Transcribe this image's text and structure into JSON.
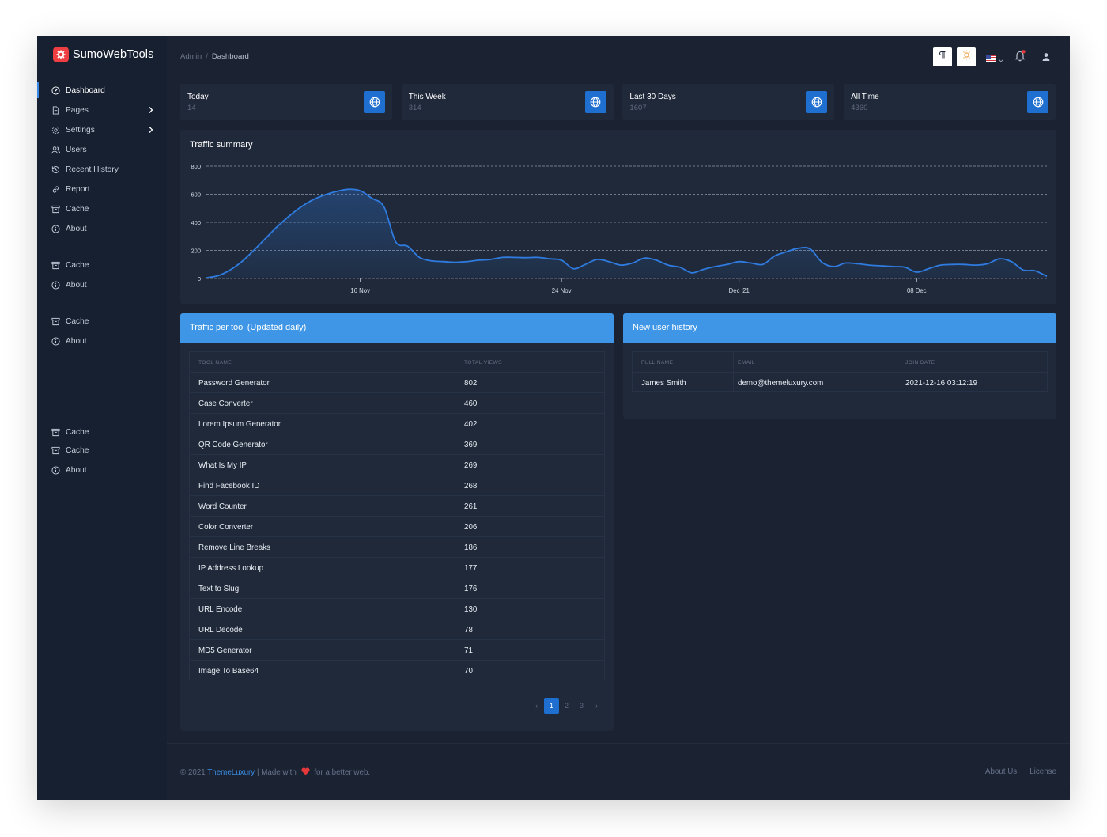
{
  "brand": {
    "name": "SumoWebTools"
  },
  "breadcrumb": {
    "root": "Admin",
    "current": "Dashboard"
  },
  "sidebar": {
    "items": [
      {
        "label": "Dashboard",
        "icon": "dashboard-icon",
        "active": true
      },
      {
        "label": "Pages",
        "icon": "file-icon",
        "has_children": true
      },
      {
        "label": "Settings",
        "icon": "gear-icon",
        "has_children": true
      },
      {
        "label": "Users",
        "icon": "users-icon"
      },
      {
        "label": "Recent History",
        "icon": "history-icon"
      },
      {
        "label": "Report",
        "icon": "link-icon"
      },
      {
        "label": "Cache",
        "icon": "archive-icon"
      },
      {
        "label": "About",
        "icon": "info-icon"
      },
      {
        "label": "Cache",
        "icon": "archive-icon"
      },
      {
        "label": "About",
        "icon": "info-icon"
      },
      {
        "label": "Cache",
        "icon": "archive-icon"
      },
      {
        "label": "About",
        "icon": "info-icon"
      },
      {
        "label": "Cache",
        "icon": "archive-icon"
      },
      {
        "label": "Cache",
        "icon": "archive-icon"
      },
      {
        "label": "About",
        "icon": "info-icon"
      }
    ]
  },
  "header": {
    "icons": [
      "text-direction-icon",
      "sun-icon",
      "us-flag-icon",
      "bell-icon",
      "user-icon"
    ]
  },
  "stats": [
    {
      "title": "Today",
      "value": "14"
    },
    {
      "title": "This Week",
      "value": "314"
    },
    {
      "title": "Last 30 Days",
      "value": "1607"
    },
    {
      "title": "All Time",
      "value": "4360"
    }
  ],
  "chart_data": {
    "type": "area",
    "title": "Traffic summary",
    "xlabel": "",
    "ylabel": "",
    "ylim": [
      0,
      800
    ],
    "yticks": [
      0,
      200,
      400,
      600,
      800
    ],
    "xticks": [
      {
        "label": "16 Nov",
        "index": 13
      },
      {
        "label": "24 Nov",
        "index": 30
      },
      {
        "label": "Dec '21",
        "index": 45
      },
      {
        "label": "08 Dec",
        "index": 60
      }
    ],
    "grid": true,
    "legend": "none",
    "color": "#2f7be0",
    "series": [
      {
        "values": [
          5,
          20,
          60,
          120,
          200,
          285,
          370,
          445,
          510,
          560,
          595,
          620,
          635,
          625,
          570,
          510,
          260,
          230,
          150,
          125,
          120,
          115,
          120,
          130,
          135,
          150,
          150,
          148,
          150,
          140,
          130,
          70,
          100,
          135,
          120,
          95,
          110,
          145,
          130,
          95,
          80,
          40,
          65,
          85,
          100,
          120,
          110,
          100,
          160,
          190,
          215,
          210,
          115,
          85,
          110,
          105,
          95,
          90,
          85,
          80,
          45,
          70,
          95,
          100,
          100,
          95,
          105,
          140,
          120,
          60,
          55,
          15
        ]
      }
    ]
  },
  "tool_traffic": {
    "title": "Traffic per tool (Updated daily)",
    "columns": [
      "TOOL NAME",
      "TOTAL VIEWS"
    ],
    "rows": [
      [
        "Password Generator",
        "802"
      ],
      [
        "Case Converter",
        "460"
      ],
      [
        "Lorem Ipsum Generator",
        "402"
      ],
      [
        "QR Code Generator",
        "369"
      ],
      [
        "What Is My IP",
        "269"
      ],
      [
        "Find Facebook ID",
        "268"
      ],
      [
        "Word Counter",
        "261"
      ],
      [
        "Color Converter",
        "206"
      ],
      [
        "Remove Line Breaks",
        "186"
      ],
      [
        "IP Address Lookup",
        "177"
      ],
      [
        "Text to Slug",
        "176"
      ],
      [
        "URL Encode",
        "130"
      ],
      [
        "URL Decode",
        "78"
      ],
      [
        "MD5 Generator",
        "71"
      ],
      [
        "Image To Base64",
        "70"
      ]
    ],
    "pagination": {
      "prev": "‹",
      "pages": [
        "1",
        "2",
        "3"
      ],
      "active": "1",
      "next": "›"
    }
  },
  "user_history": {
    "title": "New user history",
    "columns": [
      "FULL NAME",
      "EMAIL",
      "JOIN DATE"
    ],
    "rows": [
      [
        "James Smith",
        "demo@themeluxury.com",
        "2021-12-16 03:12:19"
      ]
    ]
  },
  "footer": {
    "copyright": "© 2021",
    "company": "ThemeLuxury",
    "made_with": "| Made with",
    "tagline": "for a better web.",
    "links": [
      "About Us",
      "License"
    ]
  },
  "colors": {
    "accent": "#1f6fd1",
    "panel_header": "#3f96e6",
    "brand_logo": "#ef3e41",
    "heart": "#e5383b"
  }
}
